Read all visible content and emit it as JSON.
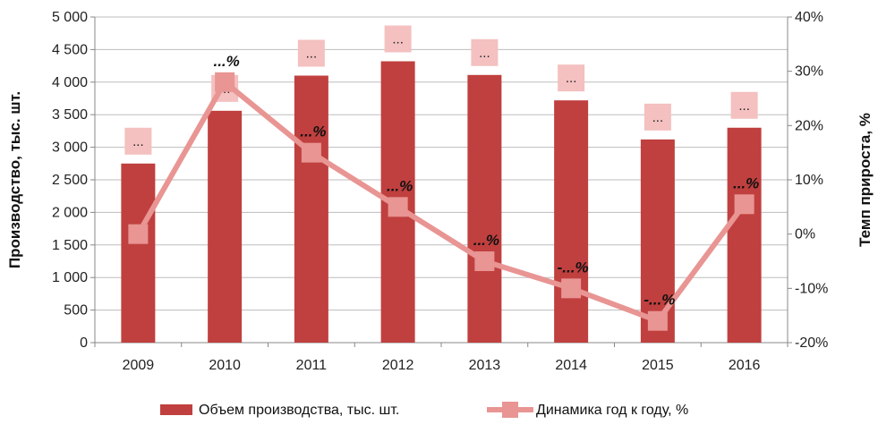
{
  "chart_data": {
    "type": "bar",
    "categories": [
      "2009",
      "2010",
      "2011",
      "2012",
      "2013",
      "2014",
      "2015",
      "2016"
    ],
    "series": [
      {
        "name": "Объем производства, тыс. шт.",
        "kind": "bar",
        "axis": "left",
        "color": "#c0403f",
        "values": [
          2750,
          3560,
          4100,
          4320,
          4110,
          3720,
          3120,
          3300
        ],
        "labels": [
          "...",
          "...",
          "...",
          "...",
          "...",
          "...",
          "...",
          "..."
        ]
      },
      {
        "name": "Динамика год к году, %",
        "kind": "line",
        "axis": "right",
        "color": "#e89593",
        "values": [
          0,
          28,
          15,
          5,
          -5,
          -10,
          -16,
          5.5
        ],
        "labels": [
          "",
          "...%",
          "...%",
          "...%",
          "...%",
          "-...%",
          "-...%",
          "...%"
        ]
      }
    ],
    "y_left": {
      "label": "Производство, тыс. шт.",
      "ylim": [
        0,
        5000
      ],
      "ticks": [
        "0",
        "500",
        "1 000",
        "1 500",
        "2 000",
        "2 500",
        "3 000",
        "3 500",
        "4 000",
        "4 500",
        "5 000"
      ]
    },
    "y_right": {
      "label": "Темп прироста, %",
      "ylim": [
        -20,
        40
      ],
      "ticks": [
        "-20%",
        "-10%",
        "0%",
        "10%",
        "20%",
        "30%",
        "40%"
      ]
    },
    "grid": true,
    "legend": "bottom",
    "bar_label_box_color": "#f4c0c0"
  }
}
